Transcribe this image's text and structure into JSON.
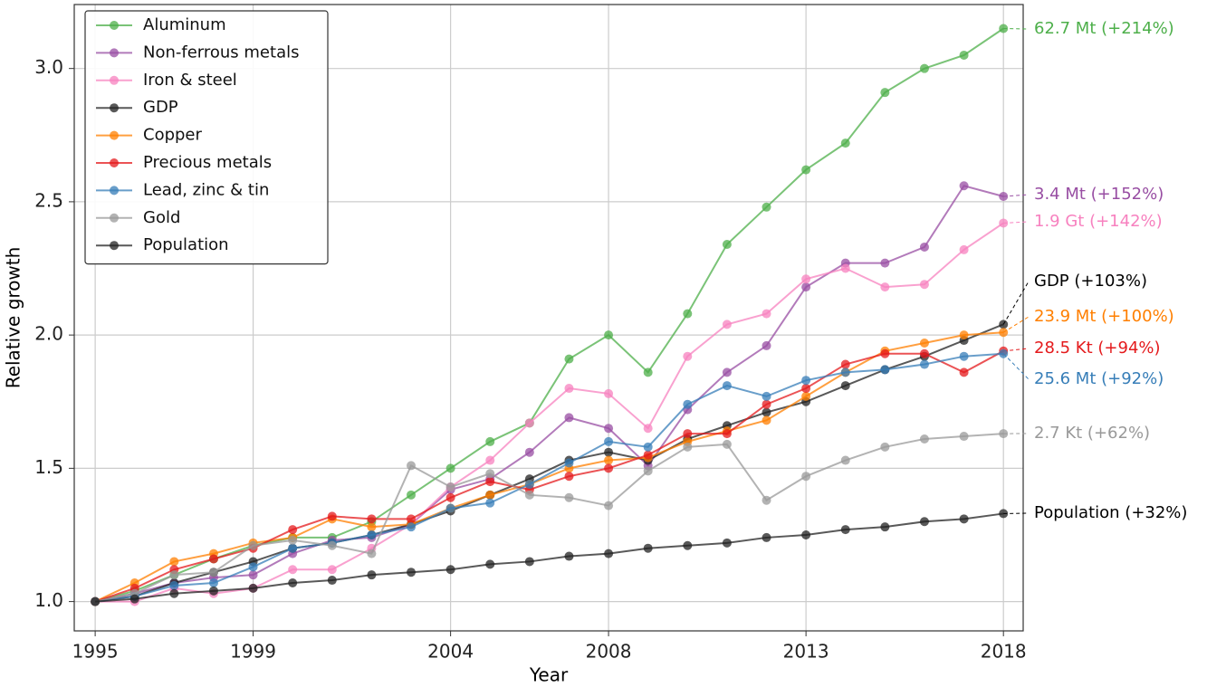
{
  "chart_data": {
    "type": "line",
    "xlabel": "Year",
    "ylabel": "Relative growth",
    "x": [
      1995,
      1996,
      1997,
      1998,
      1999,
      2000,
      2001,
      2002,
      2003,
      2004,
      2005,
      2006,
      2007,
      2008,
      2009,
      2010,
      2011,
      2012,
      2013,
      2014,
      2015,
      2016,
      2017,
      2018
    ],
    "xlim": [
      1994.47,
      2018.5
    ],
    "xticks": [
      1995,
      1999,
      2004,
      2008,
      2013,
      2018
    ],
    "ylim": [
      0.89,
      3.24
    ],
    "yticks": [
      {
        "value": 1,
        "label": "1.0"
      },
      1.5,
      {
        "value": 2,
        "label": "2.0"
      },
      2.5,
      {
        "value": 3,
        "label": "3.0"
      }
    ],
    "grid": true,
    "legend": "upper left",
    "series": [
      {
        "name": "Aluminum",
        "color": "#4daf4a",
        "label_color": "#4daf4a",
        "label": "62.7 Mt (+214%)",
        "values": [
          1.0,
          1.04,
          1.1,
          1.16,
          1.21,
          1.24,
          1.24,
          1.3,
          1.4,
          1.5,
          1.6,
          1.67,
          1.91,
          2.0,
          1.86,
          2.08,
          2.34,
          2.48,
          2.62,
          2.72,
          2.91,
          3.0,
          3.05,
          3.15
        ]
      },
      {
        "name": "Non-ferrous metals",
        "color": "#984ea3",
        "label_color": "#984ea3",
        "label": "3.4 Mt (+152%)",
        "values": [
          1.0,
          1.03,
          1.07,
          1.09,
          1.1,
          1.18,
          1.23,
          1.24,
          1.29,
          1.42,
          1.46,
          1.56,
          1.69,
          1.65,
          1.51,
          1.72,
          1.86,
          1.96,
          2.18,
          2.27,
          2.27,
          2.33,
          2.56,
          2.52
        ]
      },
      {
        "name": "Iron & steel",
        "color": "#f781bf",
        "label_color": "#f781bf",
        "label": "1.9 Gt (+142%)",
        "values": [
          1.0,
          1.0,
          1.05,
          1.03,
          1.05,
          1.12,
          1.12,
          1.2,
          1.29,
          1.43,
          1.53,
          1.67,
          1.8,
          1.78,
          1.65,
          1.92,
          2.04,
          2.08,
          2.21,
          2.25,
          2.18,
          2.19,
          2.32,
          2.42
        ]
      },
      {
        "name": "GDP",
        "color": "#222222",
        "label_color": "#000000",
        "label": "GDP (+103%)",
        "values": [
          1.0,
          1.02,
          1.07,
          1.11,
          1.15,
          1.2,
          1.22,
          1.25,
          1.29,
          1.34,
          1.4,
          1.46,
          1.53,
          1.56,
          1.53,
          1.61,
          1.66,
          1.71,
          1.75,
          1.81,
          1.87,
          1.92,
          1.98,
          2.04
        ]
      },
      {
        "name": "Copper",
        "color": "#ff7f00",
        "label_color": "#ff7f00",
        "label": "23.9 Mt (+100%)",
        "values": [
          1.0,
          1.07,
          1.15,
          1.18,
          1.22,
          1.24,
          1.31,
          1.28,
          1.29,
          1.35,
          1.4,
          1.44,
          1.5,
          1.53,
          1.54,
          1.6,
          1.64,
          1.68,
          1.77,
          1.86,
          1.94,
          1.97,
          2.0,
          2.01
        ]
      },
      {
        "name": "Precious metals",
        "color": "#e41a1c",
        "label_color": "#e41a1c",
        "label": "28.5 Kt (+94%)",
        "values": [
          1.0,
          1.05,
          1.12,
          1.16,
          1.2,
          1.27,
          1.32,
          1.31,
          1.31,
          1.39,
          1.45,
          1.42,
          1.47,
          1.5,
          1.55,
          1.63,
          1.63,
          1.74,
          1.8,
          1.89,
          1.93,
          1.93,
          1.86,
          1.94
        ]
      },
      {
        "name": "Lead, zinc & tin",
        "color": "#377eb8",
        "label_color": "#377eb8",
        "label": "25.6 Mt (+92%)",
        "values": [
          1.0,
          1.02,
          1.06,
          1.07,
          1.13,
          1.2,
          1.22,
          1.25,
          1.28,
          1.35,
          1.37,
          1.44,
          1.52,
          1.6,
          1.58,
          1.74,
          1.81,
          1.77,
          1.83,
          1.86,
          1.87,
          1.89,
          1.92,
          1.93
        ]
      },
      {
        "name": "Gold",
        "color": "#999999",
        "label_color": "#999999",
        "label": "2.7 Kt (+62%)",
        "values": [
          1.0,
          1.03,
          1.1,
          1.11,
          1.21,
          1.23,
          1.21,
          1.18,
          1.51,
          1.43,
          1.48,
          1.4,
          1.39,
          1.36,
          1.49,
          1.58,
          1.59,
          1.38,
          1.47,
          1.53,
          1.58,
          1.61,
          1.62,
          1.63
        ]
      },
      {
        "name": "Population",
        "color": "#222222",
        "label_color": "#000000",
        "label": "Population (+32%)",
        "values": [
          1.0,
          1.01,
          1.03,
          1.04,
          1.05,
          1.07,
          1.08,
          1.1,
          1.11,
          1.12,
          1.14,
          1.15,
          1.17,
          1.18,
          1.2,
          1.21,
          1.22,
          1.24,
          1.25,
          1.27,
          1.28,
          1.3,
          1.31,
          1.33
        ]
      }
    ]
  }
}
